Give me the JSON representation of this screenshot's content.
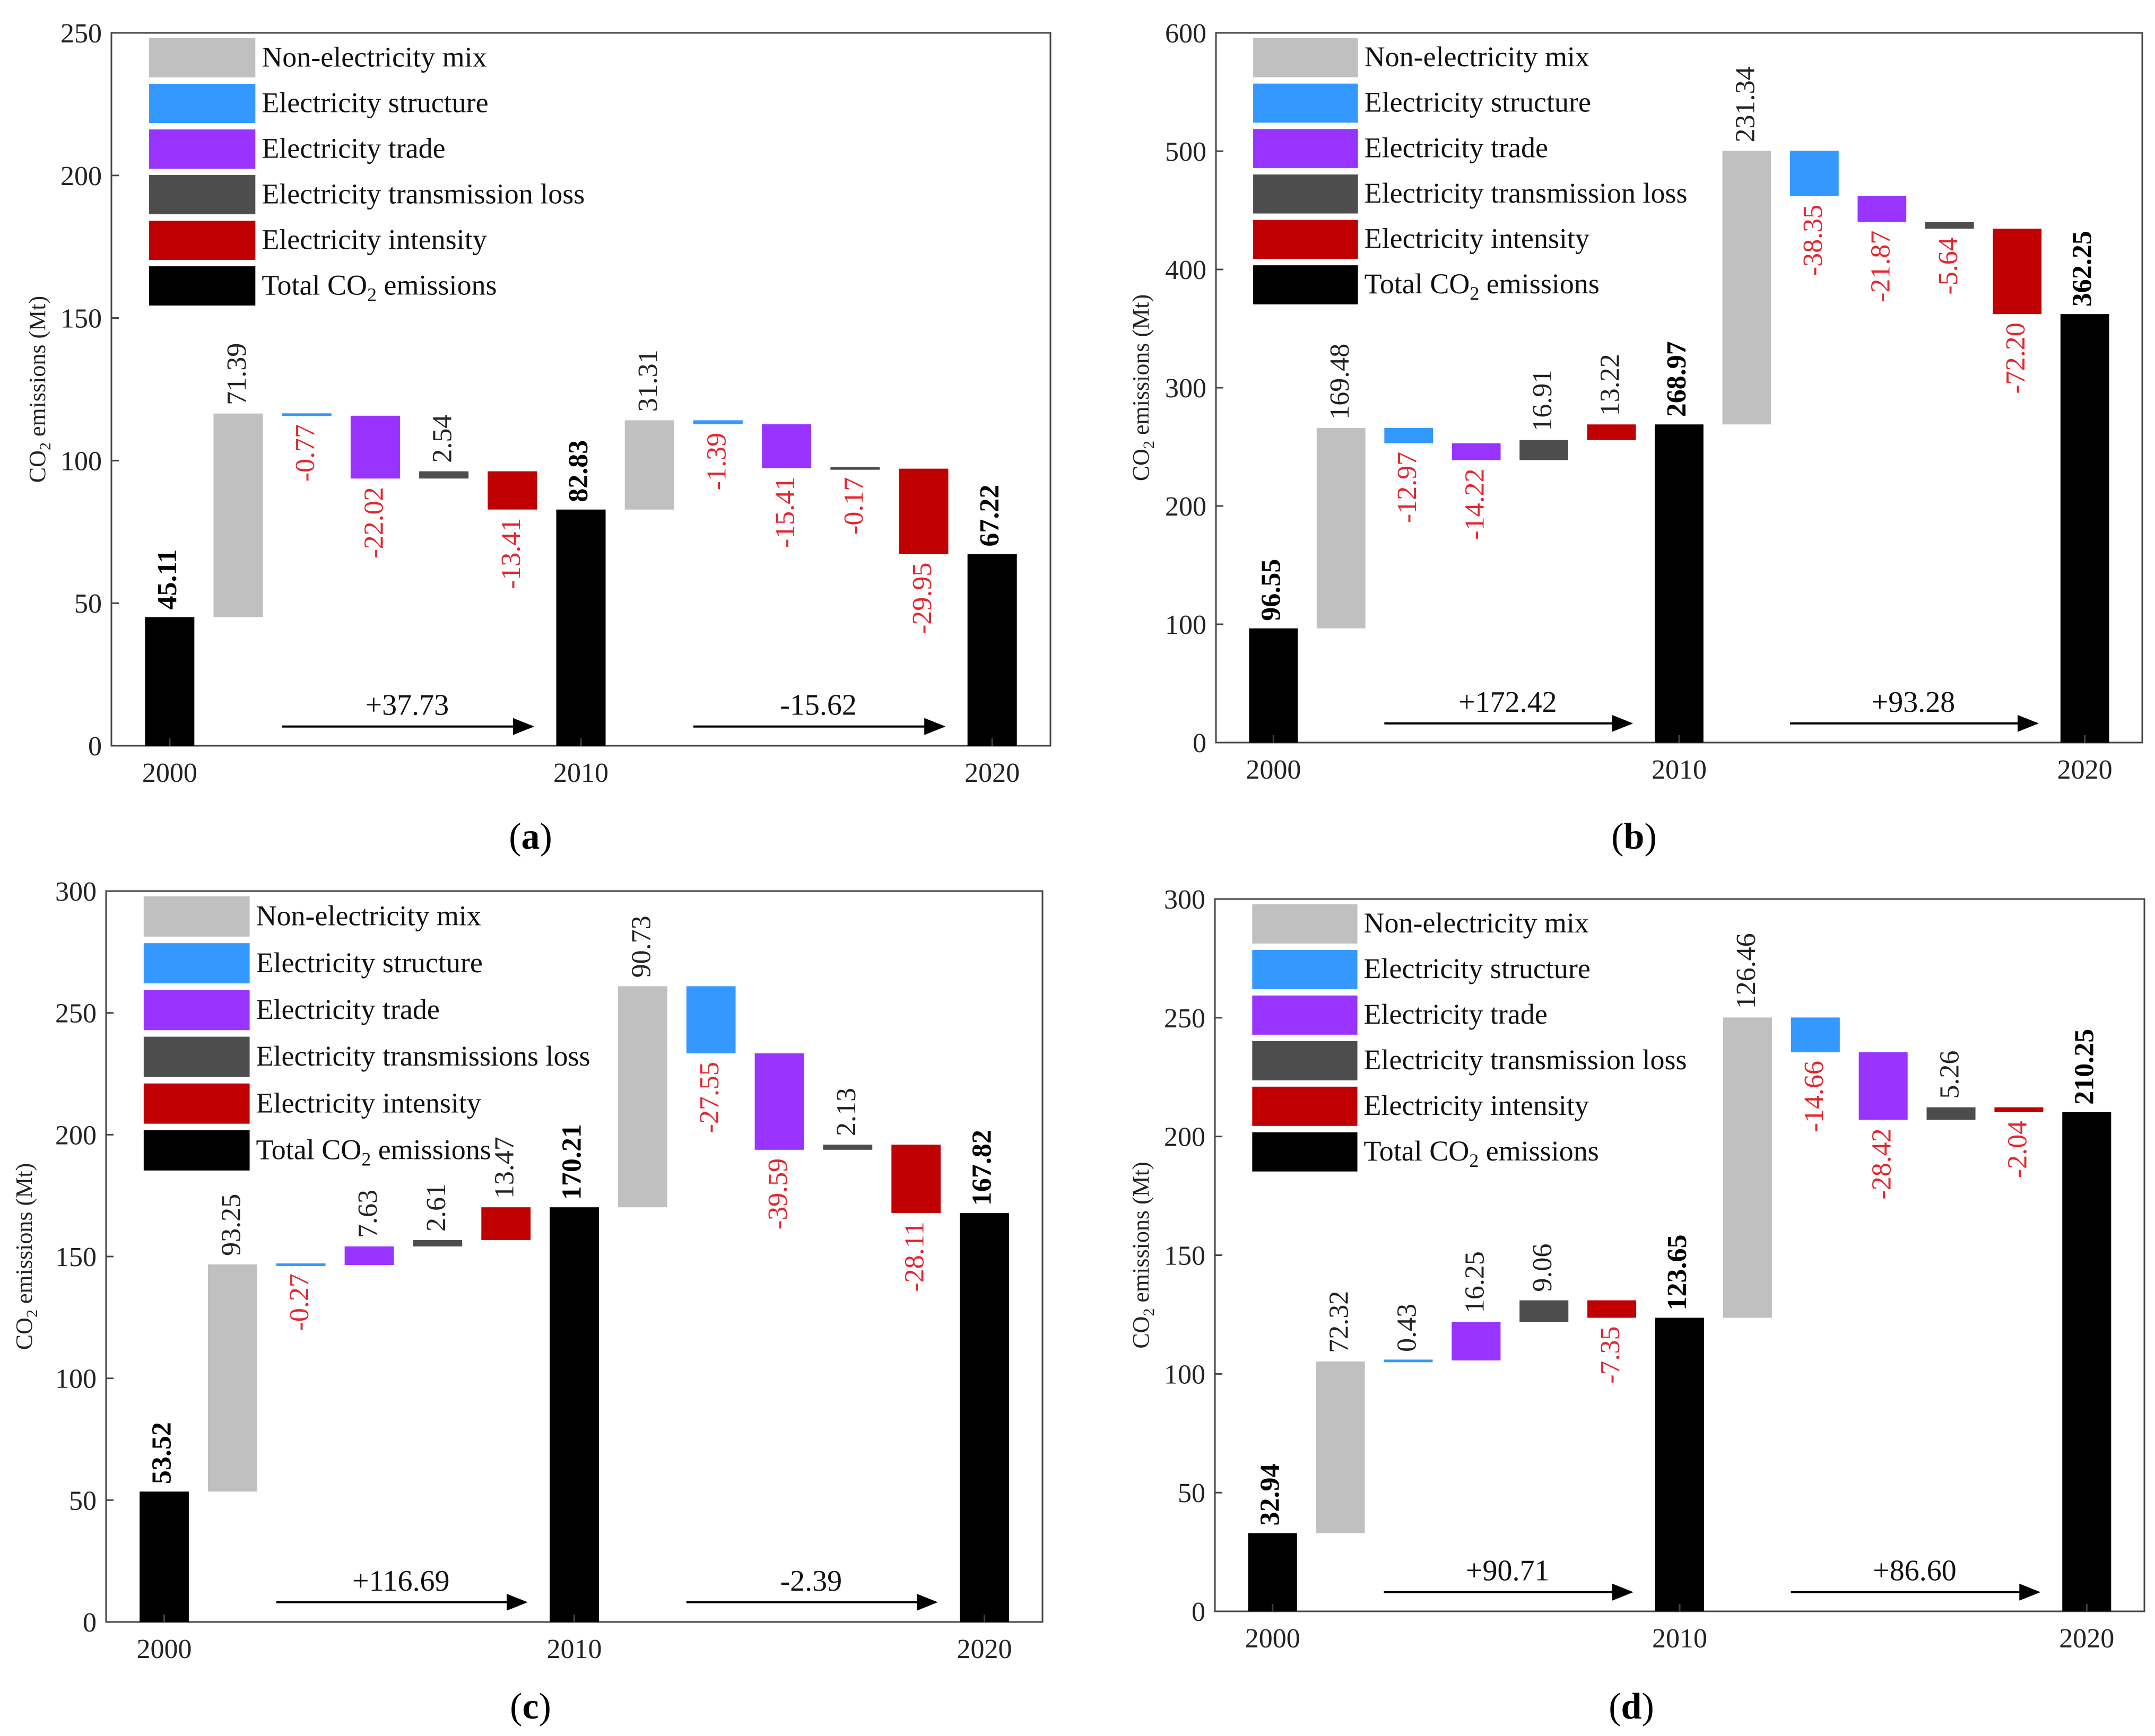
{
  "figure": {
    "panel_captions": [
      "(a)",
      "(b)",
      "(c)",
      "(d)"
    ]
  },
  "colors": {
    "non_electricity_mix": "#c0c0c0",
    "electricity_structure": "#3399ff",
    "electricity_trade": "#9933ff",
    "electricity_transmission_loss": "#4d4d4d",
    "electricity_intensity": "#c00000",
    "total": "#000000",
    "negative_label": "#e3262e",
    "positive_label": "#222222"
  },
  "chart_data": [
    {
      "id": "a",
      "type": "waterfall",
      "caption": "(a)",
      "ylabel": "CO2 emissions (Mt)",
      "ylim": [
        0,
        250
      ],
      "yticks": [
        0,
        50,
        100,
        150,
        200,
        250
      ],
      "legend": [
        "Non-electricity mix",
        "Electricity structure",
        "Electricity trade",
        "Electricity transmission loss",
        "Electricity intensity",
        "Total CO2 emissions"
      ],
      "categories": [
        "2000",
        "2010",
        "2020"
      ],
      "totals": [
        45.11,
        82.83,
        67.22
      ],
      "periods": [
        {
          "contributions": [
            71.39,
            -0.77,
            -22.02,
            2.54,
            -13.41
          ],
          "change_label": "+37.73"
        },
        {
          "contributions": [
            31.31,
            -1.39,
            -15.41,
            -0.17,
            -29.95
          ],
          "change_label": "-15.62"
        }
      ],
      "total_labels": [
        "45.11",
        "82.83",
        "67.22"
      ],
      "contribution_labels": [
        [
          "71.39",
          "-0.77",
          "-22.02",
          "2.54",
          "-13.41"
        ],
        [
          "31.31",
          "-1.39",
          "-15.41",
          "-0.17",
          "-29.95"
        ]
      ]
    },
    {
      "id": "b",
      "type": "waterfall",
      "caption": "(b)",
      "ylabel": "CO2 emissions (Mt)",
      "ylim": [
        0,
        600
      ],
      "yticks": [
        0,
        100,
        200,
        300,
        400,
        500,
        600
      ],
      "legend": [
        "Non-electricity mix",
        "Electricity structure",
        "Electricity trade",
        "Electricity transmission loss",
        "Electricity intensity",
        "Total CO2 emissions"
      ],
      "categories": [
        "2000",
        "2010",
        "2020"
      ],
      "totals": [
        96.55,
        268.97,
        362.25
      ],
      "periods": [
        {
          "contributions": [
            169.48,
            -12.97,
            -14.22,
            16.91,
            13.22
          ],
          "change_label": "+172.42"
        },
        {
          "contributions": [
            231.34,
            -38.35,
            -21.87,
            -5.64,
            -72.2
          ],
          "change_label": "+93.28"
        }
      ],
      "total_labels": [
        "96.55",
        "268.97",
        "362.25"
      ],
      "contribution_labels": [
        [
          "169.48",
          "-12.97",
          "-14.22",
          "16.91",
          "13.22"
        ],
        [
          "231.34",
          "-38.35",
          "-21.87",
          "-5.64",
          "-72.20"
        ]
      ]
    },
    {
      "id": "c",
      "type": "waterfall",
      "caption": "(c)",
      "ylabel": "CO2 emissions (Mt)",
      "ylim": [
        0,
        300
      ],
      "yticks": [
        0,
        50,
        100,
        150,
        200,
        250,
        300
      ],
      "legend": [
        "Non-electricity mix",
        "Electricity structure",
        "Electricity trade",
        "Electricity transmissions loss",
        "Electricity intensity",
        "Total CO2 emissions"
      ],
      "categories": [
        "2000",
        "2010",
        "2020"
      ],
      "totals": [
        53.52,
        170.21,
        167.82
      ],
      "periods": [
        {
          "contributions": [
            93.25,
            -0.27,
            7.63,
            2.61,
            13.47
          ],
          "change_label": "+116.69"
        },
        {
          "contributions": [
            90.73,
            -27.55,
            -39.59,
            2.13,
            -28.11
          ],
          "change_label": "-2.39"
        }
      ],
      "total_labels": [
        "53.52",
        "170.21",
        "167.82"
      ],
      "contribution_labels": [
        [
          "93.25",
          "-0.27",
          "7.63",
          "2.61",
          "13.47"
        ],
        [
          "90.73",
          "-27.55",
          "-39.59",
          "2.13",
          "-28.11"
        ]
      ]
    },
    {
      "id": "d",
      "type": "waterfall",
      "caption": "(d)",
      "ylabel": "CO2 emissions (Mt)",
      "ylim": [
        0,
        300
      ],
      "yticks": [
        0,
        50,
        100,
        150,
        200,
        250,
        300
      ],
      "legend": [
        "Non-electricity mix",
        "Electricity structure",
        "Electricity trade",
        "Electricity transmission loss",
        "Electricity intensity",
        "Total CO2 emissions"
      ],
      "categories": [
        "2000",
        "2010",
        "2020"
      ],
      "totals": [
        32.94,
        123.65,
        210.25
      ],
      "periods": [
        {
          "contributions": [
            72.32,
            0.43,
            16.25,
            9.06,
            -7.35
          ],
          "change_label": "+90.71"
        },
        {
          "contributions": [
            126.46,
            -14.66,
            -28.42,
            5.26,
            -2.04
          ],
          "change_label": "+86.60"
        }
      ],
      "total_labels": [
        "32.94",
        "123.65",
        "210.25"
      ],
      "contribution_labels": [
        [
          "72.32",
          "0.43",
          "16.25",
          "9.06",
          "-7.35"
        ],
        [
          "126.46",
          "-14.66",
          "-28.42",
          "5.26",
          "-2.04"
        ]
      ]
    }
  ]
}
